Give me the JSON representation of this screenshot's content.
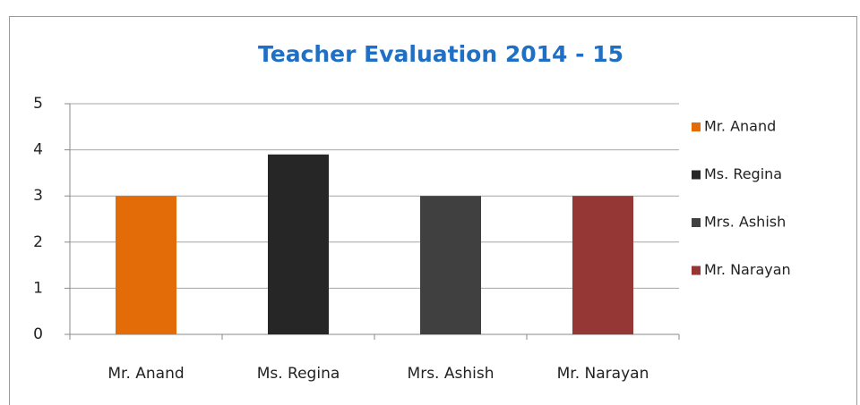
{
  "chart_data": {
    "type": "bar",
    "title": "Teacher Evaluation 2014 - 15",
    "categories": [
      "Mr. Anand",
      "Ms. Regina",
      "Mrs. Ashish",
      "Mr. Narayan"
    ],
    "values": [
      3,
      3.9,
      3,
      3
    ],
    "colors": [
      "#e36c09",
      "#262626",
      "#404040",
      "#953735"
    ],
    "ylim": [
      0,
      5
    ],
    "yticks": [
      0,
      1,
      2,
      3,
      4,
      5
    ],
    "grid": true,
    "legend": "right"
  }
}
